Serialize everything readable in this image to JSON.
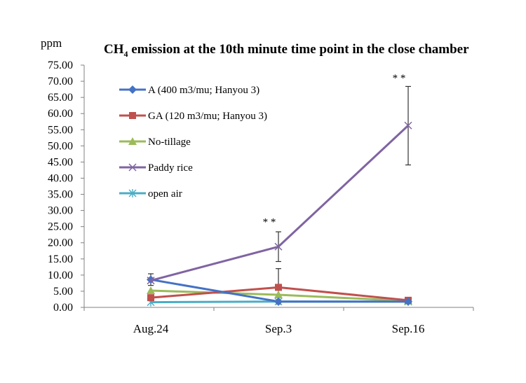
{
  "chart_data": {
    "type": "line",
    "title_main": "CH",
    "title_sub": "4",
    "title_rest": " emission at the 10th minute time point in the close chamber",
    "unit_label": "ppm",
    "categories": [
      "Aug.24",
      "Sep.3",
      "Sep.16"
    ],
    "ylim": [
      0,
      75
    ],
    "yticks": [
      "0.00",
      "5.00",
      "10.00",
      "15.00",
      "20.00",
      "25.00",
      "30.00",
      "35.00",
      "40.00",
      "45.00",
      "50.00",
      "55.00",
      "60.00",
      "65.00",
      "70.00",
      "75.00"
    ],
    "grid": false,
    "legend_position": "top-left",
    "series": [
      {
        "name": "A (400 m3/mu; Hanyou 3)",
        "values": [
          8.6,
          1.8,
          1.8
        ],
        "errors": [
          1.8,
          0,
          0
        ],
        "color": "#4472C4",
        "marker": "diamond"
      },
      {
        "name": "GA (120 m3/mu; Hanyou 3)",
        "values": [
          3.0,
          6.2,
          2.2
        ],
        "errors": [
          0,
          0,
          0
        ],
        "color": "#C0504D",
        "marker": "square"
      },
      {
        "name": "No-tillage",
        "values": [
          5.2,
          3.9,
          2.0
        ],
        "errors": [
          0,
          0,
          0
        ],
        "color": "#9BBB59",
        "marker": "triangle"
      },
      {
        "name": "Paddy rice",
        "values": [
          8.3,
          18.8,
          56.3
        ],
        "errors": [
          0,
          4.6,
          12.2
        ],
        "error_up": [
          0,
          4.6,
          12.1
        ],
        "color": "#8064A2",
        "marker": "x"
      },
      {
        "name": "open air",
        "values": [
          1.6,
          1.8,
          1.8
        ],
        "errors": [
          0,
          0,
          0
        ],
        "color": "#4BACC6",
        "marker": "star"
      }
    ],
    "annotations": [
      {
        "text": "* *",
        "category": "Sep.3",
        "y": 25.5
      },
      {
        "text": "* *",
        "category": "Sep.16",
        "y": 70.0
      }
    ],
    "extra_error_bars": [
      {
        "category": "Sep.3",
        "low": 1.0,
        "high": 12.0,
        "color": "#333333"
      }
    ]
  }
}
